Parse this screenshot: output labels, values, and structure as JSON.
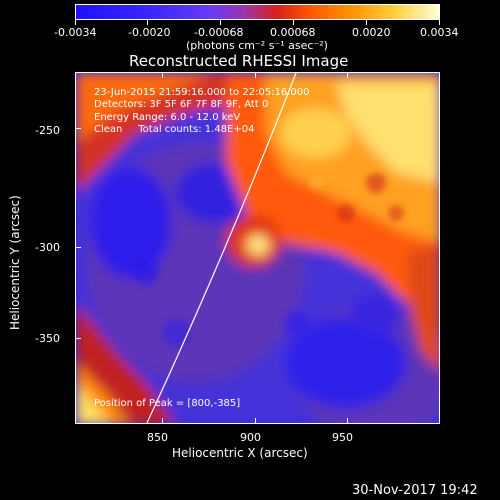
{
  "colorbar": {
    "tick_labels": [
      "-0.0034",
      "-0.0020",
      "-0.00068",
      "0.00068",
      "0.0020",
      "0.0034"
    ],
    "unit_label": "(photons cm⁻² s⁻¹ asec⁻²)"
  },
  "plot": {
    "title": "Reconstructed RHESSI Image",
    "x_axis": {
      "label": "Heliocentric X (arcsec)",
      "ticks": [
        "850",
        "900",
        "950"
      ]
    },
    "y_axis": {
      "label": "Heliocentric Y (arcsec)",
      "ticks": [
        "-250",
        "-300",
        "-350"
      ]
    },
    "info": {
      "time": "23-Jun-2015 21:59:16.000 to 22:05:16.000",
      "detectors": "Detectors: 3F 5F 6F 7F 8F 9F, Att 0",
      "energy": "Energy Range: 6.0 - 12.0 keV",
      "clean": "Clean     Total counts: 1.48E+04"
    },
    "peak": "Position of Peak = [800,-385]"
  },
  "footer": {
    "date": "30-Nov-2017 19:42"
  }
}
